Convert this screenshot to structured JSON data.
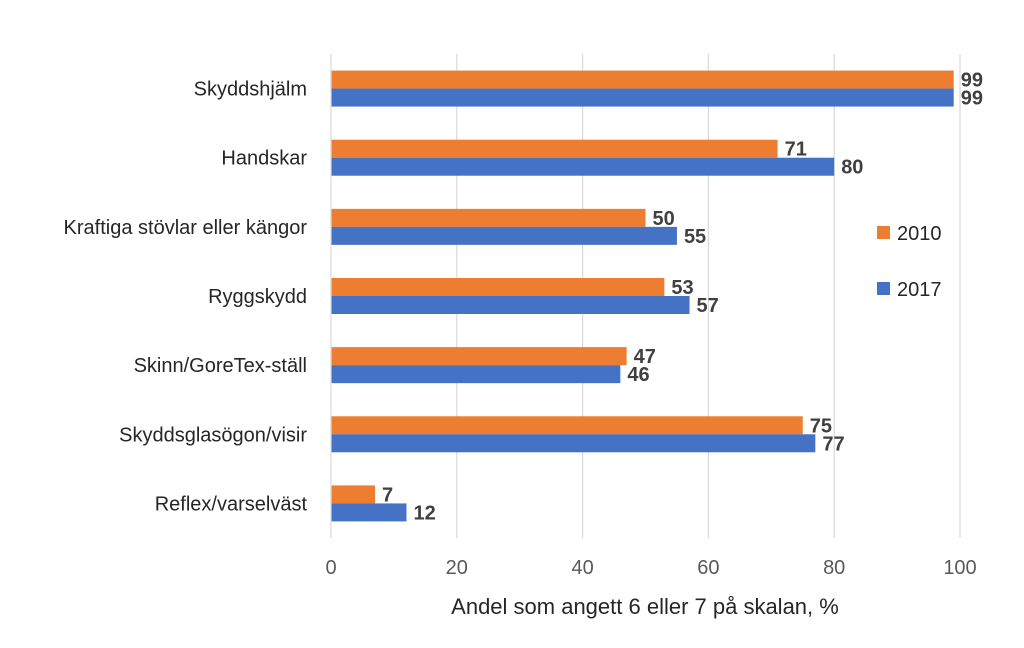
{
  "chart_data": {
    "type": "bar",
    "orientation": "horizontal",
    "categories": [
      "Skyddshjälm",
      "Handskar",
      "Kraftiga stövlar eller kängor",
      "Ryggskydd",
      "Skinn/GoreTex-ställ",
      "Skyddsglasögon/visir",
      "Reflex/varselväst"
    ],
    "series": [
      {
        "name": "2010",
        "color": "#ED7D31",
        "values": [
          99,
          71,
          50,
          53,
          47,
          75,
          7
        ]
      },
      {
        "name": "2017",
        "color": "#4472C4",
        "values": [
          99,
          80,
          55,
          57,
          46,
          77,
          12
        ]
      }
    ],
    "title": "",
    "xlabel": "Andel som angett 6 eller 7 på skalan, %",
    "ylabel": "",
    "xlim": [
      0,
      100
    ],
    "xticks": [
      "0",
      "20",
      "40",
      "60",
      "80",
      "100"
    ],
    "grid": "vertical",
    "legend_position": "right",
    "data_labels": true
  }
}
